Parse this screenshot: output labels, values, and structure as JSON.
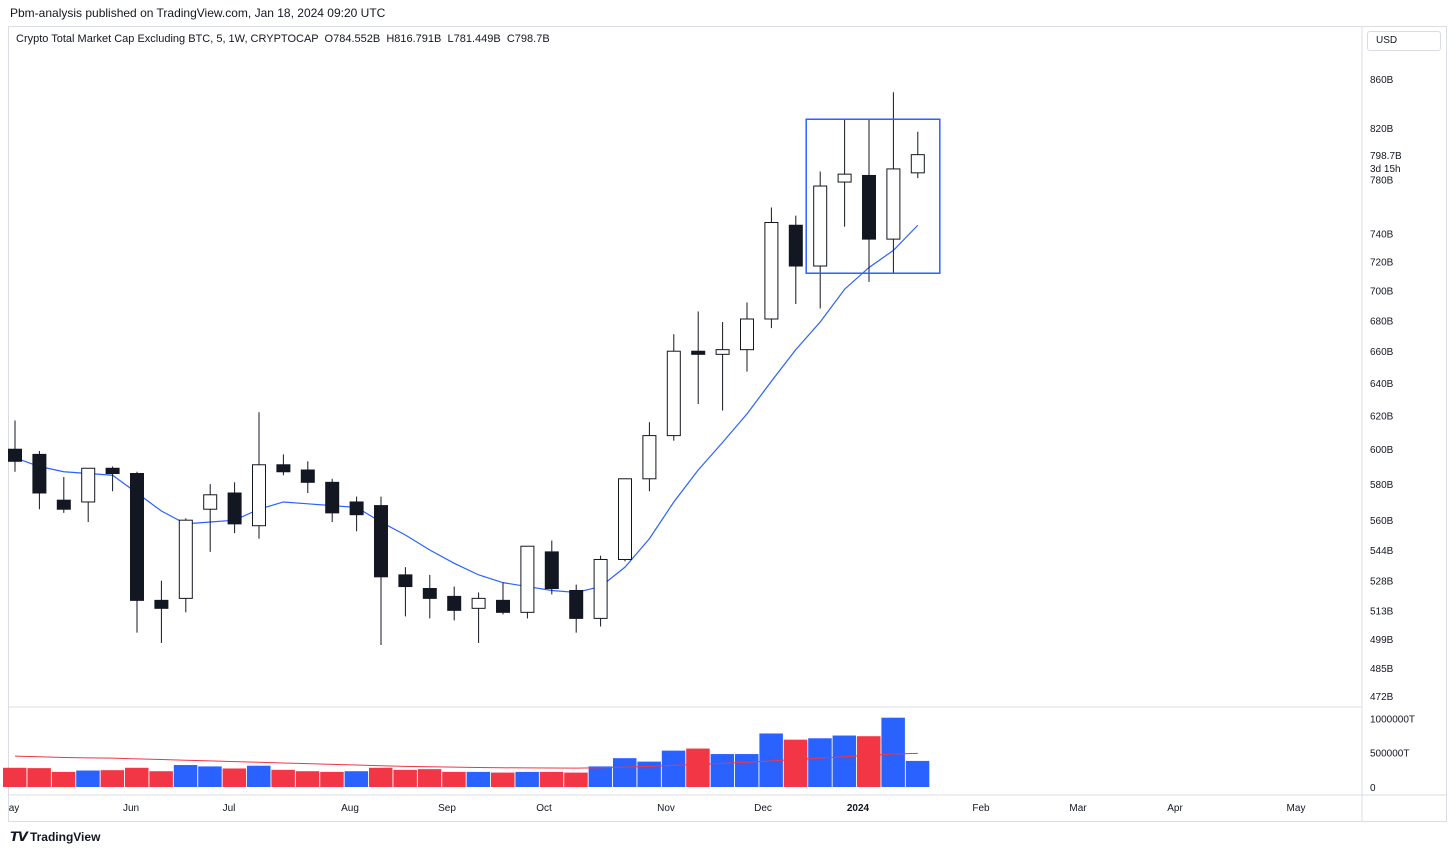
{
  "publisher": "Pbm-analysis published on TradingView.com, Jan 18, 2024 09:20 UTC",
  "legend": {
    "title": "Crypto Total Market Cap Excluding BTC, 5, 1W, CRYPTOCAP",
    "open": "O784.552B",
    "high": "H816.791B",
    "low": "L781.449B",
    "close": "C798.7B"
  },
  "currency": "USD",
  "last_price": {
    "value": "798.7B",
    "countdown": "3d 15h"
  },
  "footer": {
    "logo_text": "TradingView"
  },
  "colors": {
    "up": "#ffffff",
    "down": "#131722",
    "ma": "#2962ff",
    "vol_up": "#2962ff",
    "vol_down": "#f23645",
    "vol_ma": "#f23645",
    "box": "#2962ff"
  },
  "chart_data": {
    "type": "candlestick",
    "price_scale": "log",
    "y_ticks": [
      "860B",
      "820B",
      "780B",
      "740B",
      "720B",
      "700B",
      "680B",
      "660B",
      "640B",
      "620B",
      "600B",
      "580B",
      "560B",
      "544B",
      "528B",
      "513B",
      "499B",
      "485B",
      "472B"
    ],
    "x_labels": [
      "ay",
      "Jun",
      "Jul",
      "Aug",
      "Sep",
      "Oct",
      "Nov",
      "Dec",
      "2024",
      "Feb",
      "Mar",
      "Apr",
      "May"
    ],
    "volume_ticks": [
      "1000000T",
      "500000T",
      "0"
    ],
    "candles": [
      {
        "o": 600,
        "h": 617,
        "l": 587,
        "c": 593
      },
      {
        "o": 597,
        "h": 599,
        "l": 566,
        "c": 575
      },
      {
        "o": 571,
        "h": 584,
        "l": 564,
        "c": 566
      },
      {
        "o": 570,
        "h": 586,
        "l": 559,
        "c": 589
      },
      {
        "o": 589,
        "h": 590,
        "l": 576,
        "c": 586
      },
      {
        "o": 586,
        "h": 587,
        "l": 502,
        "c": 518
      },
      {
        "o": 518,
        "h": 528,
        "l": 497,
        "c": 514
      },
      {
        "o": 519,
        "h": 561,
        "l": 512,
        "c": 560
      },
      {
        "o": 566,
        "h": 580,
        "l": 543,
        "c": 574
      },
      {
        "o": 575,
        "h": 581,
        "l": 553,
        "c": 558
      },
      {
        "o": 557,
        "h": 622,
        "l": 550,
        "c": 591
      },
      {
        "o": 591,
        "h": 597,
        "l": 585,
        "c": 587
      },
      {
        "o": 588,
        "h": 593,
        "l": 575,
        "c": 581
      },
      {
        "o": 581,
        "h": 583,
        "l": 559,
        "c": 564
      },
      {
        "o": 570,
        "h": 573,
        "l": 554,
        "c": 563
      },
      {
        "o": 568,
        "h": 573,
        "l": 496,
        "c": 530
      },
      {
        "o": 531,
        "h": 535,
        "l": 510,
        "c": 525
      },
      {
        "o": 524,
        "h": 531,
        "l": 509,
        "c": 519
      },
      {
        "o": 520,
        "h": 525,
        "l": 508,
        "c": 513
      },
      {
        "o": 514,
        "h": 522,
        "l": 497,
        "c": 519
      },
      {
        "o": 518,
        "h": 527,
        "l": 511,
        "c": 512
      },
      {
        "o": 512,
        "h": 546,
        "l": 509,
        "c": 546
      },
      {
        "o": 543,
        "h": 549,
        "l": 521,
        "c": 524
      },
      {
        "o": 523,
        "h": 526,
        "l": 502,
        "c": 509
      },
      {
        "o": 509,
        "h": 541,
        "l": 505,
        "c": 539
      },
      {
        "o": 539,
        "h": 583,
        "l": 538,
        "c": 583
      },
      {
        "o": 583,
        "h": 616,
        "l": 576,
        "c": 608
      },
      {
        "o": 608,
        "h": 671,
        "l": 605,
        "c": 660
      },
      {
        "o": 660,
        "h": 686,
        "l": 627,
        "c": 658
      },
      {
        "o": 658,
        "h": 679,
        "l": 623,
        "c": 661
      },
      {
        "o": 661,
        "h": 692,
        "l": 647,
        "c": 681
      },
      {
        "o": 681,
        "h": 759,
        "l": 675,
        "c": 748
      },
      {
        "o": 746,
        "h": 753,
        "l": 691,
        "c": 717
      },
      {
        "o": 717,
        "h": 786,
        "l": 688,
        "c": 775
      },
      {
        "o": 778,
        "h": 827,
        "l": 745,
        "c": 784
      },
      {
        "o": 783,
        "h": 827,
        "l": 706,
        "c": 736
      },
      {
        "o": 736,
        "h": 849,
        "l": 712,
        "c": 788
      },
      {
        "o": 785,
        "h": 817,
        "l": 781,
        "c": 799
      }
    ],
    "ma": [
      595,
      590,
      587,
      586,
      585,
      575,
      565,
      558,
      559,
      560,
      566,
      570,
      569,
      568,
      567,
      559,
      552,
      544,
      537,
      531,
      527,
      525,
      523,
      522,
      525,
      535,
      550,
      570,
      588,
      604,
      621,
      641,
      661,
      679,
      701,
      716,
      728,
      746
    ],
    "volume": [
      {
        "v": 280000,
        "d": "down"
      },
      {
        "v": 275000,
        "d": "down"
      },
      {
        "v": 220000,
        "d": "down"
      },
      {
        "v": 240000,
        "d": "up"
      },
      {
        "v": 245000,
        "d": "down"
      },
      {
        "v": 280000,
        "d": "down"
      },
      {
        "v": 230000,
        "d": "down"
      },
      {
        "v": 320000,
        "d": "up"
      },
      {
        "v": 300000,
        "d": "up"
      },
      {
        "v": 270000,
        "d": "down"
      },
      {
        "v": 310000,
        "d": "up"
      },
      {
        "v": 250000,
        "d": "down"
      },
      {
        "v": 230000,
        "d": "down"
      },
      {
        "v": 220000,
        "d": "down"
      },
      {
        "v": 230000,
        "d": "up"
      },
      {
        "v": 280000,
        "d": "down"
      },
      {
        "v": 250000,
        "d": "down"
      },
      {
        "v": 260000,
        "d": "down"
      },
      {
        "v": 220000,
        "d": "down"
      },
      {
        "v": 220000,
        "d": "up"
      },
      {
        "v": 210000,
        "d": "down"
      },
      {
        "v": 220000,
        "d": "up"
      },
      {
        "v": 220000,
        "d": "down"
      },
      {
        "v": 210000,
        "d": "down"
      },
      {
        "v": 300000,
        "d": "up"
      },
      {
        "v": 420000,
        "d": "up"
      },
      {
        "v": 370000,
        "d": "up"
      },
      {
        "v": 530000,
        "d": "up"
      },
      {
        "v": 560000,
        "d": "down"
      },
      {
        "v": 480000,
        "d": "up"
      },
      {
        "v": 480000,
        "d": "up"
      },
      {
        "v": 780000,
        "d": "up"
      },
      {
        "v": 690000,
        "d": "down"
      },
      {
        "v": 710000,
        "d": "up"
      },
      {
        "v": 750000,
        "d": "up"
      },
      {
        "v": 740000,
        "d": "down"
      },
      {
        "v": 1010000,
        "d": "up"
      },
      {
        "v": 380000,
        "d": "up"
      }
    ],
    "volume_ma": [
      450000,
      440000,
      430000,
      425000,
      420000,
      410000,
      400000,
      390000,
      380000,
      370000,
      360000,
      350000,
      340000,
      330000,
      320000,
      310000,
      300000,
      295000,
      290000,
      285000,
      280000,
      278000,
      276000,
      275000,
      280000,
      290000,
      300000,
      315000,
      330000,
      345000,
      360000,
      380000,
      400000,
      420000,
      440000,
      460000,
      480000,
      490000
    ],
    "highlight_box": {
      "from_index": 33,
      "to_index": 37,
      "high": 827,
      "low": 712
    }
  }
}
